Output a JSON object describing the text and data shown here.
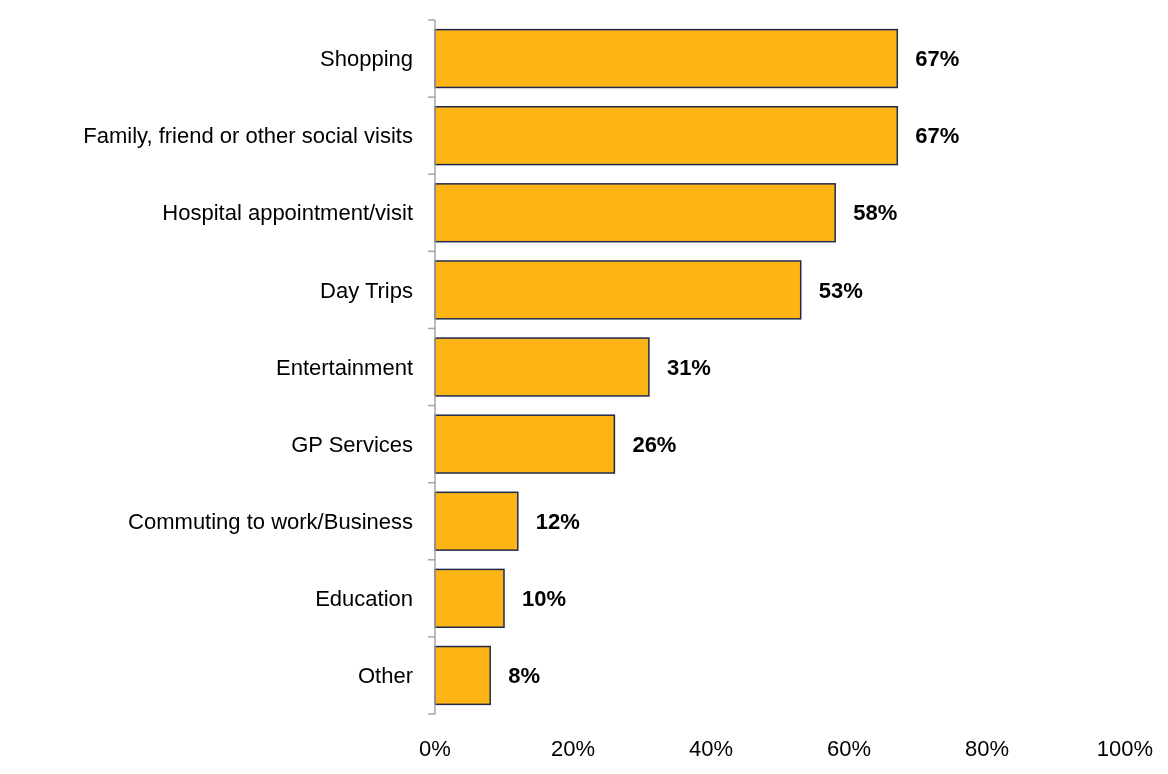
{
  "chart_data": {
    "type": "bar",
    "orientation": "horizontal",
    "categories": [
      "Shopping",
      "Family, friend or other social visits",
      "Hospital appointment/visit",
      "Day Trips",
      "Entertainment",
      "GP Services",
      "Commuting to work/Business",
      "Education",
      "Other"
    ],
    "values": [
      67,
      67,
      58,
      53,
      31,
      26,
      12,
      10,
      8
    ],
    "value_labels": [
      "67%",
      "67%",
      "58%",
      "53%",
      "31%",
      "26%",
      "12%",
      "10%",
      "8%"
    ],
    "color": "#fdb515",
    "xlim": [
      0,
      100
    ],
    "xticks": [
      {
        "value": 0,
        "label": "0%"
      },
      {
        "value": 20,
        "label": "20%"
      },
      {
        "value": 40,
        "label": "40%"
      },
      {
        "value": 60,
        "label": "60%"
      },
      {
        "value": 80,
        "label": "80%"
      },
      {
        "value": 100,
        "label": "100%"
      }
    ],
    "grid": false
  }
}
